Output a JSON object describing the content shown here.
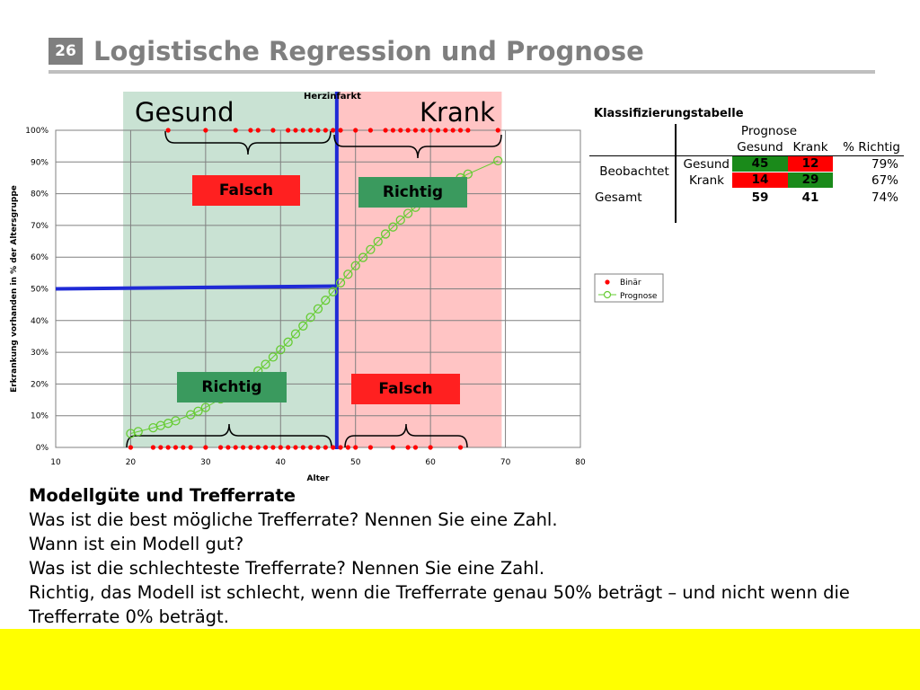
{
  "slide": {
    "number": "26",
    "title": "Logistische Regression und Prognose"
  },
  "chart_labels": {
    "herzinfarkt": "Herzinfarkt",
    "gesund": "Gesund",
    "krank": "Krank",
    "falsch_top": "Falsch",
    "richtig_top": "Richtig",
    "richtig_bottom": "Richtig",
    "falsch_bottom": "Falsch"
  },
  "chart_data": {
    "type": "scatter",
    "title": "",
    "xlabel": "Alter",
    "ylabel": "Erkrankung vorhanden in % der Altersgruppe",
    "xlim": [
      10,
      80
    ],
    "ylim": [
      0,
      100
    ],
    "x_ticks": [
      "10",
      "20",
      "30",
      "40",
      "50",
      "60",
      "70",
      "80"
    ],
    "y_ticks": [
      "0%",
      "10%",
      "20%",
      "30%",
      "40%",
      "50%",
      "60%",
      "70%",
      "80%",
      "90%",
      "100%"
    ],
    "grid": true,
    "legend": "right",
    "threshold": {
      "cutoff_percent": 50,
      "cutoff_age": 47.5
    },
    "series": [
      {
        "name": "Binär",
        "color": "#ff0000",
        "marker": "filled-circle",
        "points": [
          [
            20,
            0
          ],
          [
            23,
            0
          ],
          [
            24,
            0
          ],
          [
            25,
            0
          ],
          [
            26,
            0
          ],
          [
            27,
            0
          ],
          [
            28,
            0
          ],
          [
            30,
            0
          ],
          [
            32,
            0
          ],
          [
            33,
            0
          ],
          [
            34,
            0
          ],
          [
            35,
            0
          ],
          [
            36,
            0
          ],
          [
            37,
            0
          ],
          [
            38,
            0
          ],
          [
            39,
            0
          ],
          [
            40,
            0
          ],
          [
            41,
            0
          ],
          [
            42,
            0
          ],
          [
            43,
            0
          ],
          [
            44,
            0
          ],
          [
            45,
            0
          ],
          [
            46,
            0
          ],
          [
            47,
            0
          ],
          [
            48,
            0
          ],
          [
            49,
            0
          ],
          [
            50,
            0
          ],
          [
            52,
            0
          ],
          [
            55,
            0
          ],
          [
            57,
            0
          ],
          [
            58,
            0
          ],
          [
            60,
            0
          ],
          [
            64,
            0
          ],
          [
            25,
            100
          ],
          [
            30,
            100
          ],
          [
            34,
            100
          ],
          [
            36,
            100
          ],
          [
            37,
            100
          ],
          [
            39,
            100
          ],
          [
            41,
            100
          ],
          [
            42,
            100
          ],
          [
            43,
            100
          ],
          [
            44,
            100
          ],
          [
            45,
            100
          ],
          [
            46,
            100
          ],
          [
            47,
            100
          ],
          [
            48,
            100
          ],
          [
            50,
            100
          ],
          [
            52,
            100
          ],
          [
            54,
            100
          ],
          [
            55,
            100
          ],
          [
            56,
            100
          ],
          [
            57,
            100
          ],
          [
            58,
            100
          ],
          [
            59,
            100
          ],
          [
            60,
            100
          ],
          [
            61,
            100
          ],
          [
            62,
            100
          ],
          [
            63,
            100
          ],
          [
            64,
            100
          ],
          [
            65,
            100
          ],
          [
            69,
            100
          ]
        ]
      },
      {
        "name": "Prognose",
        "color": "#66cc33",
        "marker": "open-circle",
        "points": [
          [
            20,
            4.4
          ],
          [
            21,
            5.0
          ],
          [
            23,
            6.2
          ],
          [
            24,
            6.9
          ],
          [
            25,
            7.6
          ],
          [
            26,
            8.4
          ],
          [
            28,
            10.3
          ],
          [
            29,
            11.4
          ],
          [
            30,
            12.6
          ],
          [
            32,
            15.3
          ],
          [
            34,
            18.4
          ],
          [
            35,
            20.2
          ],
          [
            36,
            22.1
          ],
          [
            37,
            24.1
          ],
          [
            38,
            26.2
          ],
          [
            39,
            28.5
          ],
          [
            40,
            30.8
          ],
          [
            41,
            33.2
          ],
          [
            42,
            35.8
          ],
          [
            43,
            38.3
          ],
          [
            44,
            41.0
          ],
          [
            45,
            43.7
          ],
          [
            46,
            46.4
          ],
          [
            47,
            49.1
          ],
          [
            48,
            51.9
          ],
          [
            49,
            54.6
          ],
          [
            50,
            57.3
          ],
          [
            51,
            59.9
          ],
          [
            52,
            62.4
          ],
          [
            53,
            64.9
          ],
          [
            54,
            67.3
          ],
          [
            55,
            69.5
          ],
          [
            56,
            71.7
          ],
          [
            57,
            73.8
          ],
          [
            58,
            75.7
          ],
          [
            60,
            79.2
          ],
          [
            61,
            80.8
          ],
          [
            62,
            82.3
          ],
          [
            63,
            83.7
          ],
          [
            64,
            85.0
          ],
          [
            65,
            86.2
          ],
          [
            69,
            90.4
          ]
        ]
      }
    ]
  },
  "classification": {
    "title": "Klassifizierungstabelle",
    "prognose_header": "Prognose",
    "col_gesund": "Gesund",
    "col_krank": "Krank",
    "col_richtig": "% Richtig",
    "beobachtet": "Beobachtet",
    "row_gesund": "Gesund",
    "row_krank": "Krank",
    "gesamt": "Gesamt",
    "gg": "45",
    "gk": "12",
    "gr": "79%",
    "kg": "14",
    "kk": "29",
    "kr": "67%",
    "sg": "59",
    "sk": "41",
    "sr": "74%",
    "color_correct": "#1a8a1a",
    "color_wrong": "#ff0000"
  },
  "text": {
    "heading": "Modellgüte und Trefferrate",
    "line1": "Was ist die best mögliche Trefferrate? Nennen Sie eine Zahl.",
    "line2": "Wann ist ein Modell gut?",
    "line3": "Was ist die schlechteste Trefferrate? Nennen Sie eine Zahl.",
    "line4": "Richtig, das Modell ist schlecht, wenn die Trefferrate genau 50% beträgt – und nicht wenn die Trefferrate 0% beträgt."
  }
}
